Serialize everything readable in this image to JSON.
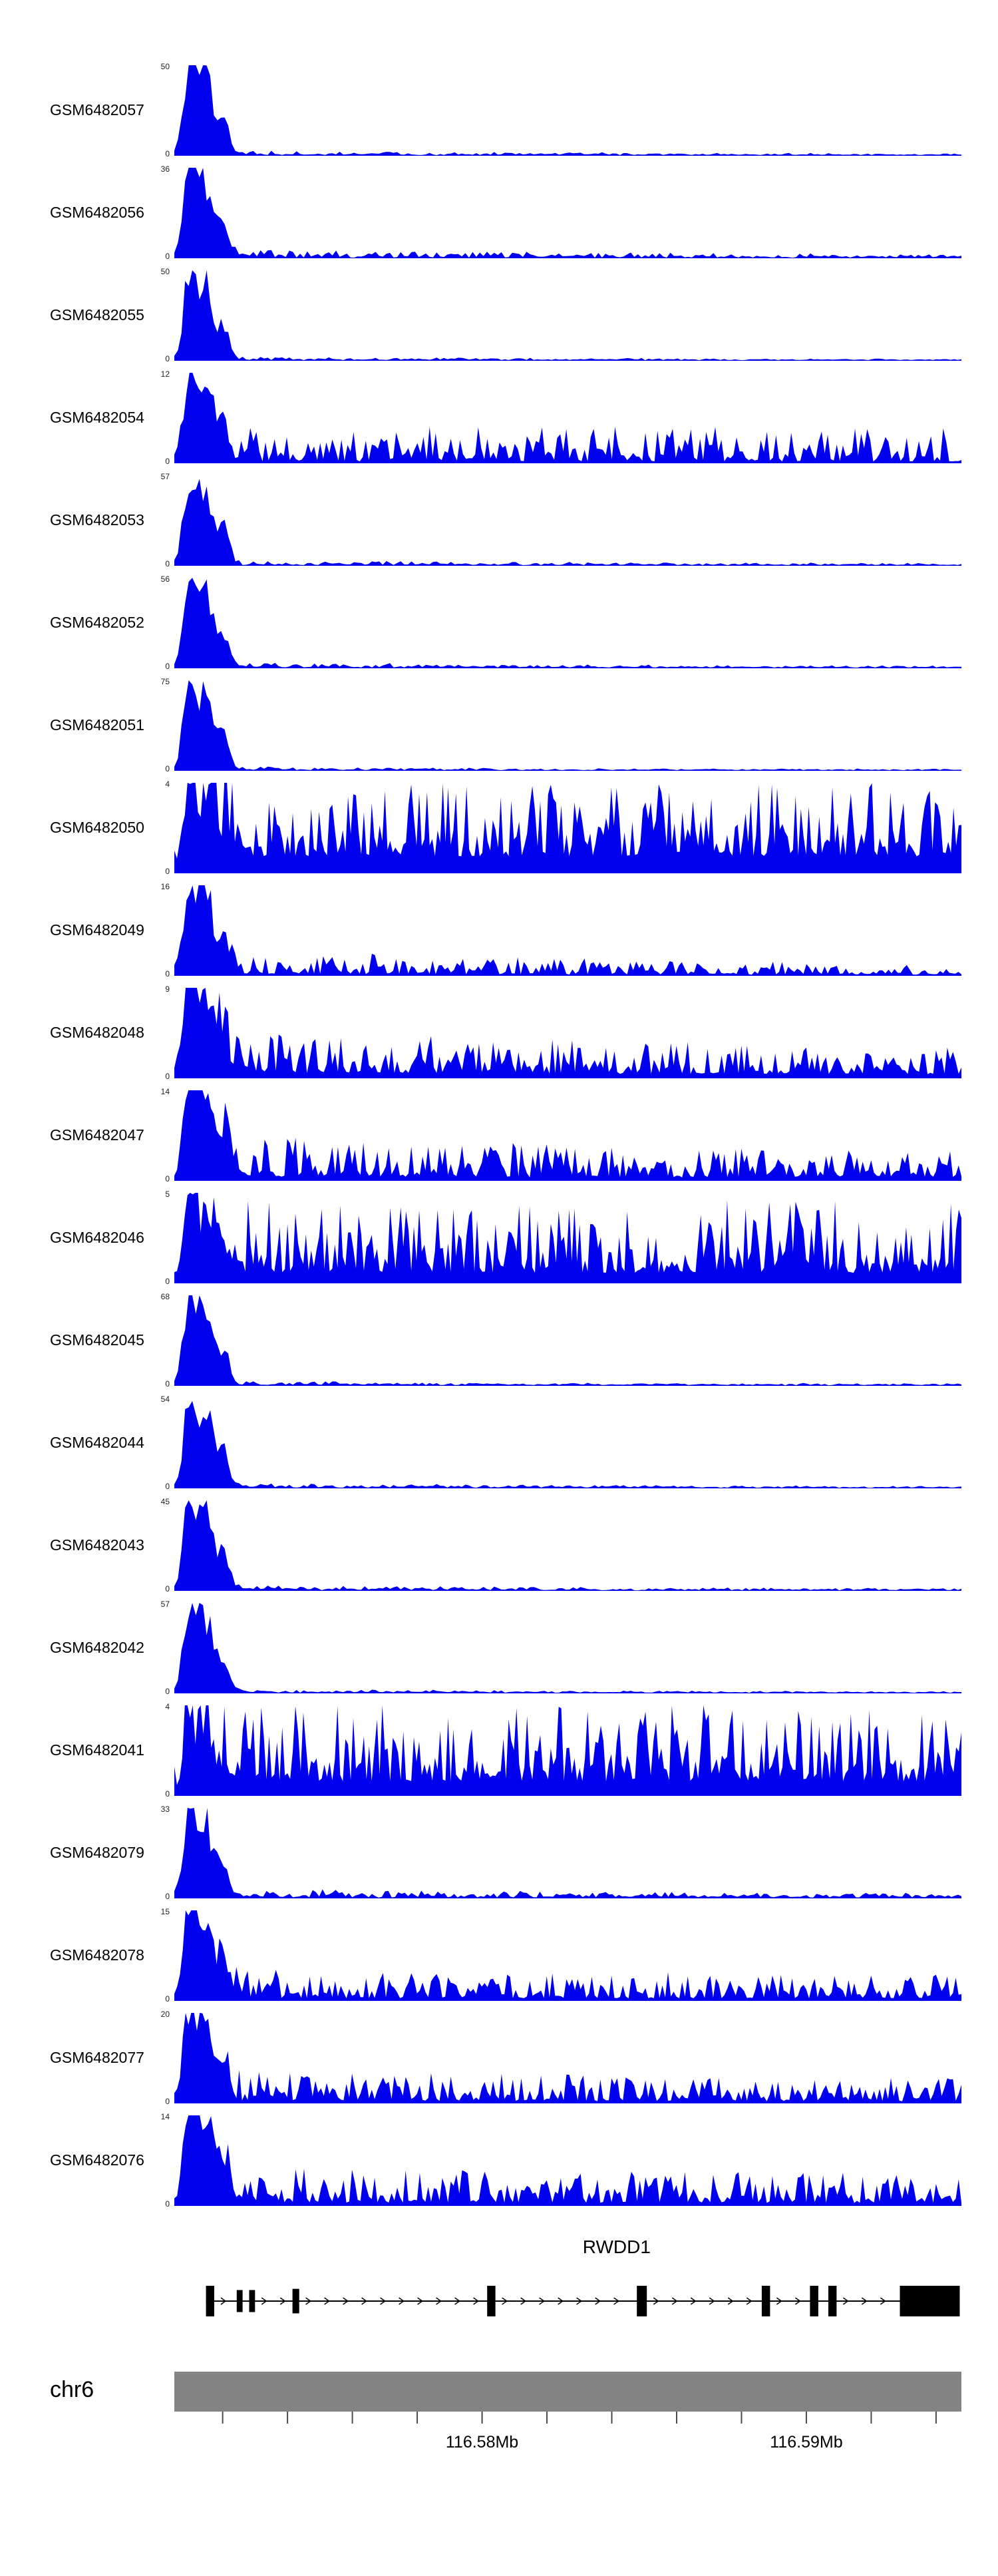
{
  "chart_data": {
    "type": "area",
    "title": "",
    "legend": "none",
    "grid": false,
    "style": {
      "signal_color": "#0000EE",
      "exon_color": "#000000",
      "axis_bar_color": "#848484",
      "tick_color": "#4a4a4a"
    },
    "tracks": [
      {
        "name": "GSM6482057",
        "ymin": 0,
        "ymax": 50,
        "profile": {
          "pattern": "promoter_peak",
          "seed": 11,
          "peak": 1,
          "broad": 0.05,
          "decay": 1.5,
          "floor": 0,
          "n": 220
        }
      },
      {
        "name": "GSM6482056",
        "ymin": 0,
        "ymax": 36,
        "profile": {
          "pattern": "promoter_peak",
          "seed": 12,
          "peak": 1,
          "broad": 0.09,
          "decay": 1.0,
          "floor": 0,
          "n": 220
        }
      },
      {
        "name": "GSM6482055",
        "ymin": 0,
        "ymax": 50,
        "profile": {
          "pattern": "promoter_peak",
          "seed": 13,
          "peak": 1,
          "broad": 0.04,
          "decay": 1.8,
          "floor": 0,
          "n": 220
        }
      },
      {
        "name": "GSM6482054",
        "ymin": 0,
        "ymax": 12,
        "profile": {
          "pattern": "peak_plus_broad",
          "seed": 14,
          "peak": 1,
          "broad": 0.42,
          "decay": 0.1,
          "floor": 0.03,
          "n": 260
        }
      },
      {
        "name": "GSM6482053",
        "ymin": 0,
        "ymax": 57,
        "profile": {
          "pattern": "promoter_peak",
          "seed": 15,
          "peak": 1,
          "broad": 0.06,
          "decay": 1.4,
          "floor": 0,
          "n": 220
        }
      },
      {
        "name": "GSM6482052",
        "ymin": 0,
        "ymax": 56,
        "profile": {
          "pattern": "promoter_peak",
          "seed": 16,
          "peak": 1,
          "broad": 0.06,
          "decay": 1.4,
          "floor": 0,
          "n": 220
        }
      },
      {
        "name": "GSM6482051",
        "ymin": 0,
        "ymax": 75,
        "profile": {
          "pattern": "promoter_peak",
          "seed": 17,
          "peak": 1,
          "broad": 0.04,
          "decay": 1.8,
          "floor": 0,
          "n": 220
        }
      },
      {
        "name": "GSM6482050",
        "ymin": 0,
        "ymax": 4,
        "profile": {
          "pattern": "broad_dense",
          "seed": 18,
          "peak": 0.6,
          "broad": 1.0,
          "decay": 0,
          "floor": 0.18,
          "n": 300
        }
      },
      {
        "name": "GSM6482049",
        "ymin": 0,
        "ymax": 16,
        "profile": {
          "pattern": "peak_plus_broad",
          "seed": 19,
          "peak": 1,
          "broad": 0.3,
          "decay": 1.0,
          "floor": 0.04,
          "n": 260
        }
      },
      {
        "name": "GSM6482048",
        "ymin": 0,
        "ymax": 9,
        "profile": {
          "pattern": "peak_plus_broad",
          "seed": 20,
          "peak": 1,
          "broad": 0.55,
          "decay": 0.5,
          "floor": 0.1,
          "n": 280
        }
      },
      {
        "name": "GSM6482047",
        "ymin": 0,
        "ymax": 14,
        "profile": {
          "pattern": "peak_plus_broad",
          "seed": 21,
          "peak": 1,
          "broad": 0.5,
          "decay": 0.45,
          "floor": 0.08,
          "n": 280
        }
      },
      {
        "name": "GSM6482046",
        "ymin": 0,
        "ymax": 5,
        "profile": {
          "pattern": "broad_dense",
          "seed": 22,
          "peak": 0.7,
          "broad": 0.9,
          "decay": 0,
          "floor": 0.12,
          "n": 300
        }
      },
      {
        "name": "GSM6482045",
        "ymin": 0,
        "ymax": 68,
        "profile": {
          "pattern": "promoter_peak",
          "seed": 23,
          "peak": 1,
          "broad": 0.05,
          "decay": 1.5,
          "floor": 0,
          "n": 220
        }
      },
      {
        "name": "GSM6482044",
        "ymin": 0,
        "ymax": 54,
        "profile": {
          "pattern": "promoter_peak",
          "seed": 24,
          "peak": 1,
          "broad": 0.05,
          "decay": 1.5,
          "floor": 0,
          "n": 220
        }
      },
      {
        "name": "GSM6482043",
        "ymin": 0,
        "ymax": 45,
        "profile": {
          "pattern": "promoter_peak",
          "seed": 25,
          "peak": 1,
          "broad": 0.06,
          "decay": 1.4,
          "floor": 0,
          "n": 220
        }
      },
      {
        "name": "GSM6482042",
        "ymin": 0,
        "ymax": 57,
        "profile": {
          "pattern": "promoter_peak",
          "seed": 26,
          "peak": 1,
          "broad": 0.04,
          "decay": 1.6,
          "floor": 0,
          "n": 220
        }
      },
      {
        "name": "GSM6482041",
        "ymin": 0,
        "ymax": 4,
        "profile": {
          "pattern": "broad_dense",
          "seed": 27,
          "peak": 0.5,
          "broad": 1.0,
          "decay": 0,
          "floor": 0.15,
          "n": 300
        }
      },
      {
        "name": "GSM6482079",
        "ymin": 0,
        "ymax": 33,
        "profile": {
          "pattern": "promoter_peak",
          "seed": 28,
          "peak": 1,
          "broad": 0.1,
          "decay": 0.8,
          "floor": 0.02,
          "n": 240
        }
      },
      {
        "name": "GSM6482078",
        "ymin": 0,
        "ymax": 15,
        "profile": {
          "pattern": "peak_plus_broad",
          "seed": 29,
          "peak": 1,
          "broad": 0.38,
          "decay": 0.3,
          "floor": 0.06,
          "n": 280
        }
      },
      {
        "name": "GSM6482077",
        "ymin": 0,
        "ymax": 20,
        "profile": {
          "pattern": "peak_plus_broad",
          "seed": 30,
          "peak": 1,
          "broad": 0.36,
          "decay": 0.3,
          "floor": 0.06,
          "n": 280
        }
      },
      {
        "name": "GSM6482076",
        "ymin": 0,
        "ymax": 14,
        "profile": {
          "pattern": "peak_plus_broad",
          "seed": 31,
          "peak": 1,
          "broad": 0.42,
          "decay": 0.2,
          "floor": 0.07,
          "n": 280
        }
      }
    ],
    "gene": {
      "name": "RWDD1",
      "strand": "+",
      "label_position_fraction": 0.562,
      "exons": [
        {
          "f": 0.0402,
          "w": 0.0105,
          "h": 1.0
        },
        {
          "f": 0.0793,
          "w": 0.0074,
          "h": 0.72
        },
        {
          "f": 0.0951,
          "w": 0.0074,
          "h": 0.72
        },
        {
          "f": 0.1501,
          "w": 0.0085,
          "h": 0.8
        },
        {
          "f": 0.3975,
          "w": 0.0105,
          "h": 1.0
        },
        {
          "f": 0.5877,
          "w": 0.0127,
          "h": 1.0
        },
        {
          "f": 0.7463,
          "w": 0.0106,
          "h": 1.0
        },
        {
          "f": 0.8076,
          "w": 0.0106,
          "h": 1.0
        },
        {
          "f": 0.8309,
          "w": 0.0105,
          "h": 1.0
        },
        {
          "f": 0.9218,
          "w": 0.0761,
          "h": 1.0
        }
      ]
    },
    "axis": {
      "chromosome": "chr6",
      "tick_unit": "Mb",
      "ticks": [
        {
          "f": 0.0614
        },
        {
          "f": 0.1438
        },
        {
          "f": 0.2262
        },
        {
          "f": 0.3086
        },
        {
          "f": 0.391,
          "label": "116.58Mb"
        },
        {
          "f": 0.4734
        },
        {
          "f": 0.5558
        },
        {
          "f": 0.6382
        },
        {
          "f": 0.7206
        },
        {
          "f": 0.803,
          "label": "116.59Mb"
        },
        {
          "f": 0.8854
        },
        {
          "f": 0.9678
        }
      ]
    }
  }
}
